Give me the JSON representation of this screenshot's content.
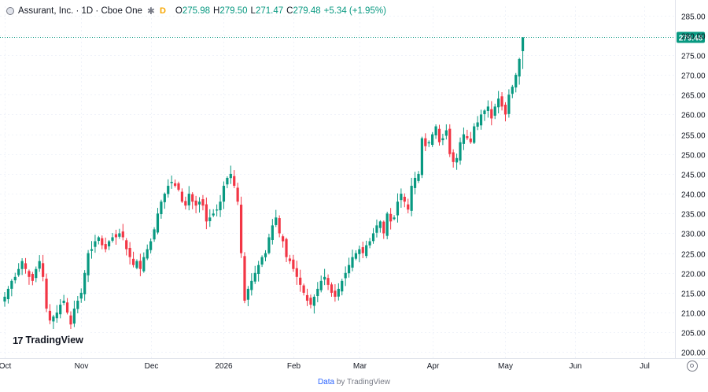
{
  "legend": {
    "title": "Assurant, Inc. · 1D · Cboe One",
    "gear_icon": "gear-icon",
    "badge": "D",
    "open_label": "O",
    "open": "275.98",
    "high_label": "H",
    "high": "279.50",
    "low_label": "L",
    "low": "271.47",
    "close_label": "C",
    "close": "279.48",
    "change": "+5.34 (+1.95%)"
  },
  "logo": {
    "mark": "17",
    "text": "TradingView"
  },
  "footer": {
    "data_label": "Data",
    "by_label": "by TradingView"
  },
  "colors": {
    "up": "#089981",
    "down": "#f23645",
    "grid": "#f0f3fa",
    "axis_text": "#131722",
    "price_line": "#089981"
  },
  "chart_data": {
    "type": "candlestick",
    "ylim": [
      198.5,
      287.3
    ],
    "y_ticks": [
      "285.00",
      "280.00",
      "275.00",
      "270.00",
      "265.00",
      "260.00",
      "255.00",
      "250.00",
      "245.00",
      "240.00",
      "235.00",
      "230.00",
      "225.00",
      "220.00",
      "215.00",
      "210.00",
      "205.00",
      "200.00"
    ],
    "x_ticks": [
      {
        "label": "Oct",
        "index": 0
      },
      {
        "label": "Nov",
        "index": 22
      },
      {
        "label": "Dec",
        "index": 42
      },
      {
        "label": "2026",
        "index": 63
      },
      {
        "label": "Feb",
        "index": 83
      },
      {
        "label": "Mar",
        "index": 102
      },
      {
        "label": "Apr",
        "index": 123
      },
      {
        "label": "May",
        "index": 144
      },
      {
        "label": "Jun",
        "index": 164
      },
      {
        "label": "Jul",
        "index": 184
      }
    ],
    "last_price": "279.48",
    "last_value": 279.48,
    "closes": [
      214,
      216,
      218,
      219,
      221,
      223,
      221,
      219,
      218,
      221,
      223,
      219,
      211,
      208,
      209,
      210,
      212,
      213,
      210,
      207,
      211,
      213,
      215,
      220,
      225,
      226,
      228,
      229,
      227,
      226,
      228,
      229,
      229,
      230,
      229,
      226,
      224,
      222,
      223,
      221,
      224,
      226,
      228,
      231,
      235,
      238,
      240,
      242,
      243,
      242,
      241,
      238,
      237,
      240,
      238,
      237,
      238,
      237,
      233,
      234,
      235,
      236,
      238,
      242,
      244,
      245,
      242,
      238,
      225,
      213,
      216,
      218,
      220,
      222,
      224,
      225,
      229,
      232,
      234,
      230,
      228,
      224,
      223,
      221,
      219,
      217,
      215,
      213,
      212,
      214,
      216,
      218,
      219,
      217,
      215,
      214,
      216,
      218,
      220,
      222,
      224,
      225,
      226,
      225,
      227,
      228,
      230,
      232,
      233,
      230,
      235,
      233,
      234,
      238,
      240,
      238,
      236,
      242,
      244,
      245,
      254,
      252,
      253,
      255,
      257,
      253,
      254,
      256,
      250,
      248,
      249,
      253,
      255,
      254,
      253,
      257,
      258,
      260,
      261,
      262,
      259,
      262,
      264,
      262,
      260,
      265,
      267,
      270,
      274,
      279.48
    ],
    "high_low": {
      "max": 279.5,
      "min": 207.3
    }
  }
}
